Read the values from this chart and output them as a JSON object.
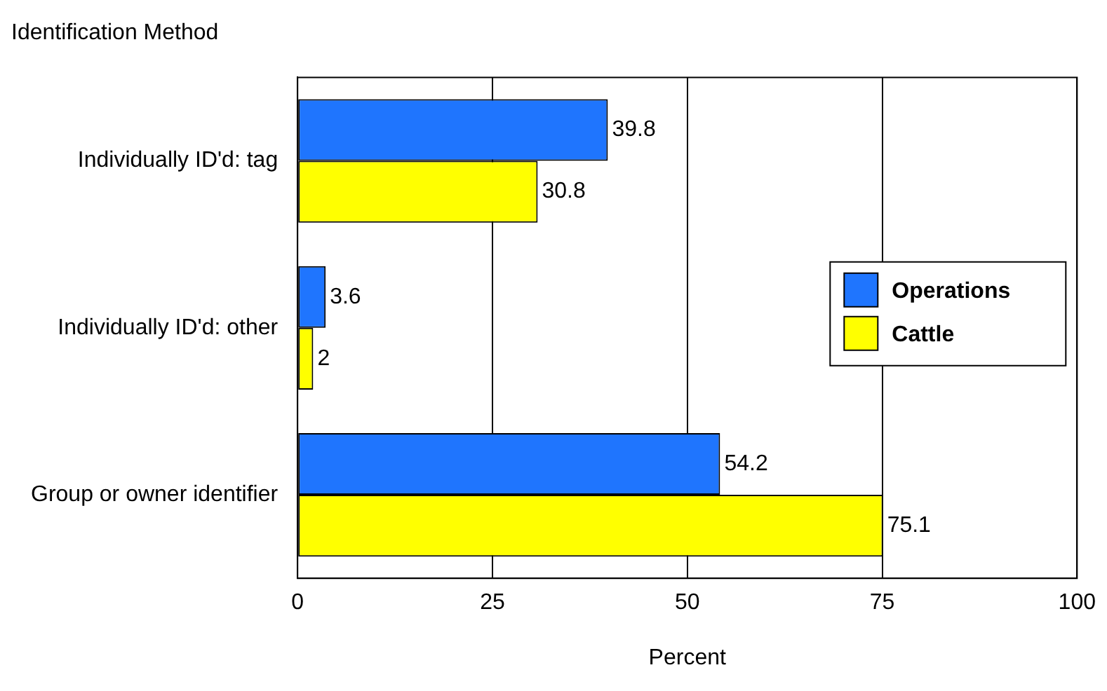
{
  "chart_data": {
    "type": "bar",
    "orientation": "horizontal",
    "title": "Identification Method",
    "xlabel": "Percent",
    "categories": [
      "Individually ID'd: tag",
      "Individually ID'd: other",
      "Group or owner identifier"
    ],
    "series": [
      {
        "name": "Operations",
        "color": "#1f75fe",
        "values": [
          39.8,
          3.6,
          54.2
        ]
      },
      {
        "name": "Cattle",
        "color": "#ffff00",
        "values": [
          30.8,
          2,
          75.1
        ]
      }
    ],
    "xlim": [
      0,
      100
    ],
    "xticks": [
      0,
      25,
      50,
      75,
      100
    ],
    "grid": "x",
    "legend": "right",
    "data_labels": true
  }
}
